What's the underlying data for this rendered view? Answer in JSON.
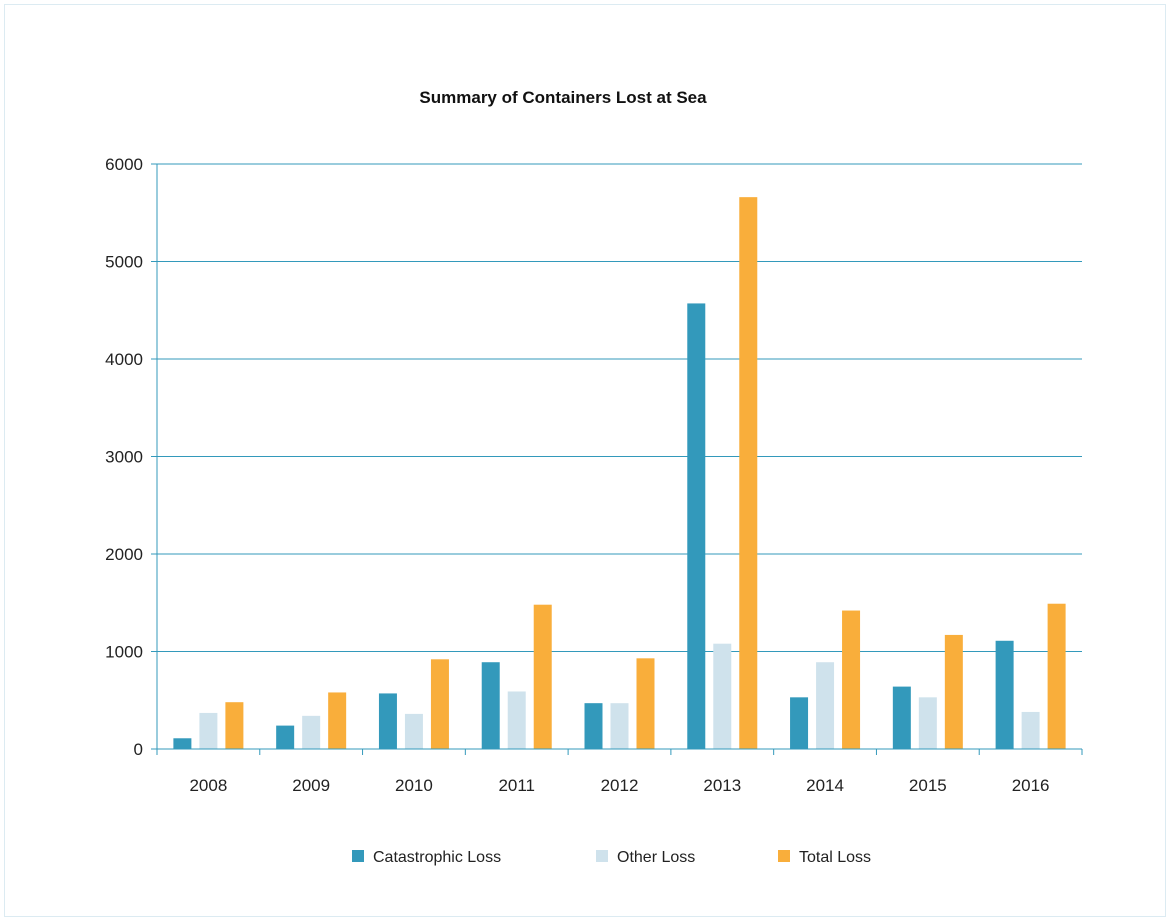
{
  "chart_data": {
    "type": "bar",
    "title": "Summary of Containers Lost at Sea",
    "categories": [
      "2008",
      "2009",
      "2010",
      "2011",
      "2012",
      "2013",
      "2014",
      "2015",
      "2016"
    ],
    "series": [
      {
        "name": "Catastrophic Loss",
        "color": "#3399bb",
        "values": [
          110,
          240,
          570,
          890,
          470,
          4570,
          530,
          640,
          1110
        ]
      },
      {
        "name": "Other Loss",
        "color": "#cfe2ec",
        "values": [
          370,
          340,
          360,
          590,
          470,
          1080,
          890,
          530,
          380
        ]
      },
      {
        "name": "Total Loss",
        "color": "#f9ae3b",
        "values": [
          480,
          580,
          920,
          1480,
          930,
          5660,
          1420,
          1170,
          1490
        ]
      }
    ],
    "ylim": [
      0,
      6000
    ],
    "yticks": [
      "0",
      "1000",
      "2000",
      "3000",
      "4000",
      "5000",
      "6000"
    ],
    "grid": true,
    "legend_position": "bottom-center",
    "colors": {
      "grid": "#3399bb",
      "axis": "#3399bb"
    }
  }
}
